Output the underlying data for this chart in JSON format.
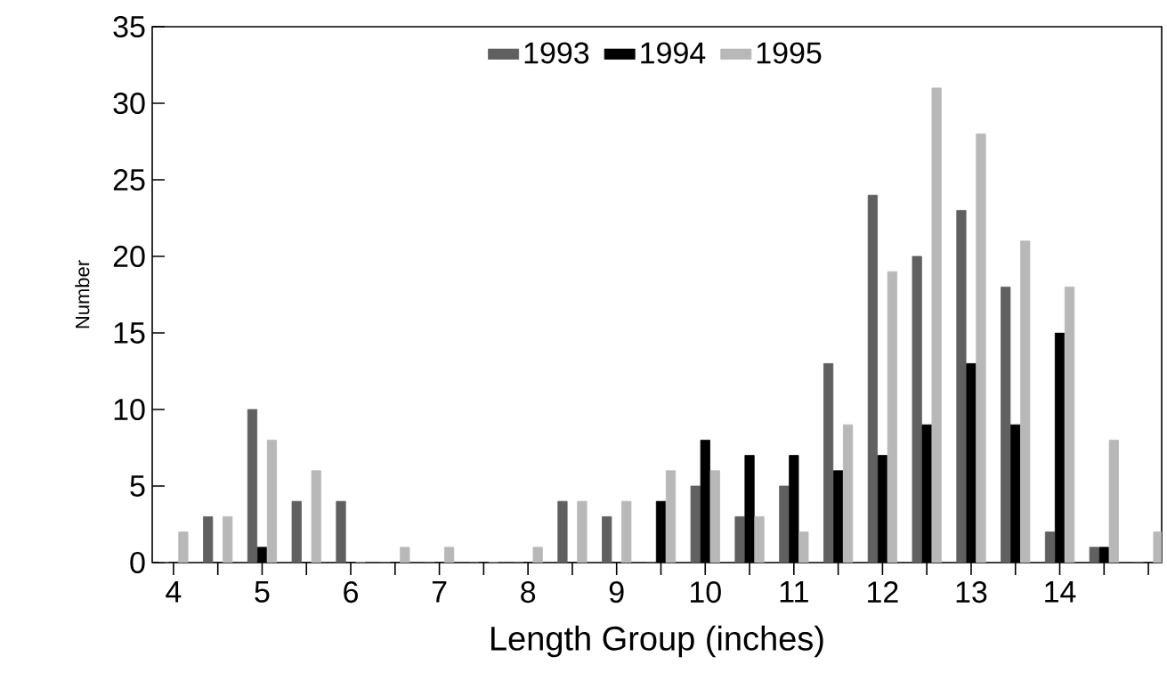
{
  "chart_data": {
    "type": "bar",
    "xlabel": "Length Group (inches)",
    "ylabel": "Number",
    "categories": [
      "4",
      null,
      "5",
      null,
      "6",
      null,
      "7",
      null,
      "8",
      null,
      "9",
      null,
      "10",
      null,
      "11",
      null,
      "12",
      null,
      "13",
      null,
      "14",
      null,
      null
    ],
    "series": [
      {
        "name": "1993",
        "color": "#606060",
        "values": [
          0,
          3,
          10,
          4,
          4,
          0,
          0,
          0,
          0,
          4,
          3,
          0,
          5,
          3,
          5,
          13,
          24,
          20,
          23,
          18,
          2,
          1,
          0
        ]
      },
      {
        "name": "1994",
        "color": "#000000",
        "values": [
          0,
          0,
          1,
          0,
          0,
          0,
          0,
          0,
          0,
          0,
          0,
          4,
          8,
          7,
          7,
          6,
          7,
          9,
          13,
          9,
          15,
          1,
          0
        ]
      },
      {
        "name": "1995",
        "color": "#b8b8b8",
        "values": [
          2,
          3,
          8,
          6,
          0,
          1,
          1,
          0,
          1,
          4,
          4,
          6,
          6,
          3,
          2,
          9,
          19,
          31,
          28,
          21,
          18,
          8,
          2
        ]
      }
    ],
    "ylim": [
      0,
      35
    ],
    "yticks": [
      0,
      5,
      10,
      15,
      20,
      25,
      30,
      35
    ],
    "grid": false,
    "legend": "top"
  }
}
